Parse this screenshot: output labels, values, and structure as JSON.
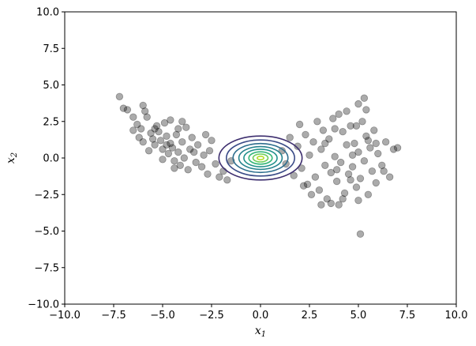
{
  "chart_data": {
    "type": "scatter",
    "title": "",
    "xlabel": {
      "base": "x",
      "sub": "1"
    },
    "ylabel": {
      "base": "x",
      "sub": "2"
    },
    "xlim": [
      -10,
      10
    ],
    "ylim": [
      -10,
      10
    ],
    "xticks": [
      -10,
      -7.5,
      -5,
      -2.5,
      0,
      2.5,
      5,
      7.5,
      10
    ],
    "yticks": [
      -10,
      -7.5,
      -5,
      -2.5,
      0,
      2.5,
      5,
      7.5,
      10
    ],
    "xtick_labels": [
      "−10.0",
      "−7.5",
      "−5.0",
      "−2.5",
      "0.0",
      "2.5",
      "5.0",
      "7.5",
      "10.0"
    ],
    "ytick_labels": [
      "−10.0",
      "−7.5",
      "−5.0",
      "−2.5",
      "0.0",
      "2.5",
      "5.0",
      "7.5",
      "10.0"
    ],
    "grid": false,
    "scatter": {
      "color": "#000000",
      "alpha": 0.33,
      "points": [
        [
          -7.2,
          4.2
        ],
        [
          -7.0,
          3.4
        ],
        [
          -6.8,
          3.3
        ],
        [
          -6.5,
          2.8
        ],
        [
          -6.3,
          2.3
        ],
        [
          -6.1,
          2.0
        ],
        [
          -6.0,
          3.6
        ],
        [
          -5.9,
          3.2
        ],
        [
          -5.8,
          2.8
        ],
        [
          -6.2,
          1.4
        ],
        [
          -6.5,
          1.9
        ],
        [
          -5.6,
          1.7
        ],
        [
          -5.5,
          1.3
        ],
        [
          -5.4,
          0.9
        ],
        [
          -5.2,
          1.8
        ],
        [
          -5.1,
          1.2
        ],
        [
          -5.0,
          0.6
        ],
        [
          -4.9,
          2.4
        ],
        [
          -4.8,
          1.5
        ],
        [
          -4.7,
          0.3
        ],
        [
          -4.6,
          1.0
        ],
        [
          -4.5,
          0.7
        ],
        [
          -4.4,
          -0.2
        ],
        [
          -4.3,
          1.6
        ],
        [
          -4.2,
          0.4
        ],
        [
          -4.1,
          -0.5
        ],
        [
          -4.0,
          1.1
        ],
        [
          -3.9,
          0.0
        ],
        [
          -3.8,
          2.1
        ],
        [
          -3.7,
          -0.8
        ],
        [
          -3.6,
          0.6
        ],
        [
          -3.5,
          1.4
        ],
        [
          -3.3,
          -0.3
        ],
        [
          -3.2,
          0.9
        ],
        [
          -3.0,
          -0.6
        ],
        [
          -2.9,
          0.2
        ],
        [
          -2.7,
          -1.1
        ],
        [
          -2.6,
          0.5
        ],
        [
          -2.5,
          1.2
        ],
        [
          -2.3,
          -0.4
        ],
        [
          -2.1,
          -1.3
        ],
        [
          -1.9,
          -0.9
        ],
        [
          -1.7,
          -1.5
        ],
        [
          -1.5,
          -0.2
        ],
        [
          -5.3,
          2.2
        ],
        [
          -4.6,
          2.6
        ],
        [
          -4.2,
          2.0
        ],
        [
          -5.7,
          0.5
        ],
        [
          -6.0,
          1.1
        ],
        [
          -5.0,
          -0.1
        ],
        [
          -4.4,
          -0.7
        ],
        [
          -3.4,
          0.4
        ],
        [
          -2.8,
          1.6
        ],
        [
          -4.0,
          2.5
        ],
        [
          -5.4,
          2.0
        ],
        [
          -4.8,
          0.9
        ],
        [
          1.1,
          0.5
        ],
        [
          1.3,
          -0.4
        ],
        [
          1.5,
          1.4
        ],
        [
          1.7,
          -1.2
        ],
        [
          1.9,
          0.8
        ],
        [
          2.0,
          2.3
        ],
        [
          2.1,
          -0.7
        ],
        [
          2.3,
          1.6
        ],
        [
          2.4,
          -1.8
        ],
        [
          2.5,
          0.2
        ],
        [
          2.7,
          1.1
        ],
        [
          2.8,
          -1.3
        ],
        [
          2.9,
          2.5
        ],
        [
          3.0,
          -2.2
        ],
        [
          3.1,
          0.6
        ],
        [
          3.2,
          1.9
        ],
        [
          3.3,
          -0.5
        ],
        [
          3.4,
          -2.8
        ],
        [
          3.5,
          1.3
        ],
        [
          3.6,
          -1.0
        ],
        [
          3.7,
          2.7
        ],
        [
          3.8,
          0.1
        ],
        [
          3.9,
          -1.6
        ],
        [
          4.0,
          3.0
        ],
        [
          4.1,
          -0.3
        ],
        [
          4.2,
          1.8
        ],
        [
          4.3,
          -2.4
        ],
        [
          4.4,
          0.9
        ],
        [
          4.5,
          -1.1
        ],
        [
          4.6,
          2.2
        ],
        [
          4.7,
          -0.6
        ],
        [
          4.8,
          1.0
        ],
        [
          4.9,
          -2.0
        ],
        [
          5.0,
          3.7
        ],
        [
          5.0,
          0.4
        ],
        [
          5.1,
          -1.4
        ],
        [
          5.2,
          2.5
        ],
        [
          5.3,
          -0.2
        ],
        [
          5.4,
          1.5
        ],
        [
          5.5,
          -2.5
        ],
        [
          5.6,
          0.7
        ],
        [
          5.7,
          -0.9
        ],
        [
          5.8,
          1.9
        ],
        [
          5.9,
          -1.7
        ],
        [
          6.0,
          0.3
        ],
        [
          6.2,
          -0.5
        ],
        [
          6.4,
          1.1
        ],
        [
          6.6,
          -1.3
        ],
        [
          6.8,
          0.6
        ],
        [
          7.0,
          0.7
        ],
        [
          5.3,
          4.1
        ],
        [
          5.4,
          3.3
        ],
        [
          4.4,
          3.2
        ],
        [
          3.6,
          -3.1
        ],
        [
          4.0,
          -3.2
        ],
        [
          4.2,
          -2.8
        ],
        [
          5.0,
          -2.9
        ],
        [
          5.1,
          -5.2
        ],
        [
          3.1,
          -3.2
        ],
        [
          2.6,
          -2.5
        ],
        [
          3.8,
          2.0
        ],
        [
          4.6,
          -1.5
        ],
        [
          5.9,
          1.0
        ],
        [
          6.3,
          -0.9
        ],
        [
          4.9,
          2.2
        ],
        [
          3.3,
          1.0
        ],
        [
          2.2,
          -1.9
        ],
        [
          3.9,
          -0.8
        ],
        [
          4.7,
          0.2
        ],
        [
          5.5,
          1.2
        ]
      ]
    },
    "contour": {
      "center": [
        0,
        0
      ],
      "sigma_x": 0.85,
      "sigma_y": 0.6,
      "levels": [
        0.5,
        0.95,
        1.35,
        1.7,
        2.0,
        2.3,
        2.55,
        2.8
      ],
      "colors": [
        "#3e2f6f",
        "#3b4c88",
        "#2e6e8e",
        "#26838e",
        "#21918c",
        "#35b779",
        "#6ece58",
        "#b5de2b"
      ]
    }
  }
}
